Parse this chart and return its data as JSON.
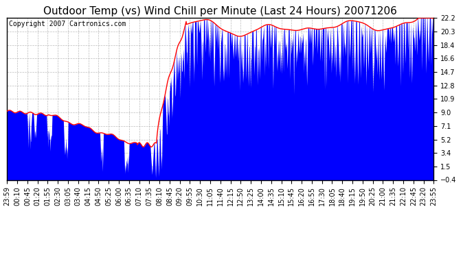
{
  "title": "Outdoor Temp (vs) Wind Chill per Minute (Last 24 Hours) 20071206",
  "copyright_text": "Copyright 2007 Cartronics.com",
  "background_color": "#ffffff",
  "plot_bg_color": "#ffffff",
  "grid_color": "#aaaaaa",
  "yticks": [
    -0.4,
    1.5,
    3.4,
    5.2,
    7.1,
    9.0,
    10.9,
    12.8,
    14.7,
    16.6,
    18.4,
    20.3,
    22.2
  ],
  "xtick_labels": [
    "23:59",
    "00:10",
    "00:45",
    "01:20",
    "01:55",
    "02:30",
    "03:05",
    "03:40",
    "04:15",
    "04:50",
    "05:25",
    "06:00",
    "06:35",
    "07:10",
    "07:35",
    "08:10",
    "08:45",
    "09:20",
    "09:55",
    "10:30",
    "11:05",
    "11:40",
    "12:15",
    "12:50",
    "13:25",
    "14:00",
    "14:35",
    "15:10",
    "15:45",
    "16:20",
    "16:55",
    "17:30",
    "18:05",
    "18:40",
    "19:15",
    "19:50",
    "20:25",
    "21:00",
    "21:35",
    "22:10",
    "22:45",
    "23:20",
    "23:55"
  ],
  "red_line_color": "#ff0000",
  "blue_fill_color": "#0000ff",
  "title_fontsize": 11,
  "axis_fontsize": 7,
  "copyright_fontsize": 7,
  "ylim": [
    -0.4,
    22.2
  ],
  "num_points": 1440
}
